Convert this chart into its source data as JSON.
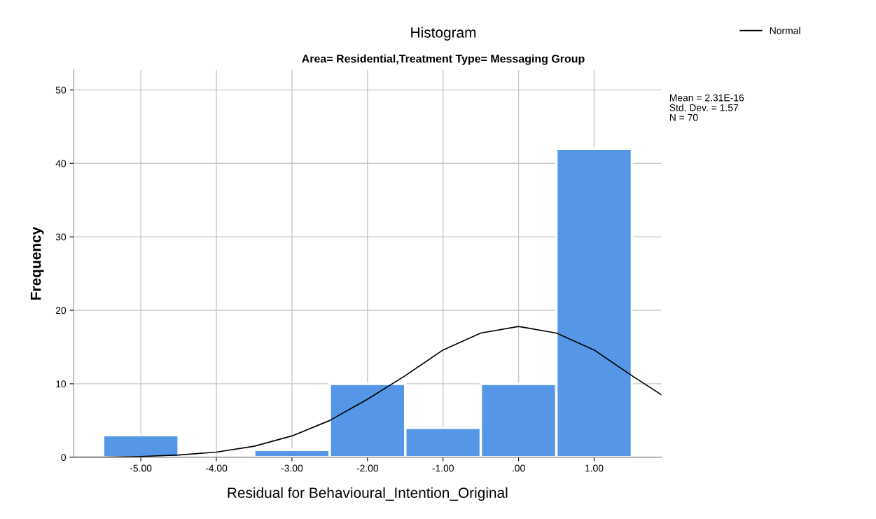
{
  "chart_data": {
    "type": "histogram",
    "title": "Histogram",
    "subtitle": "Area= Residential,Treatment Type= Messaging Group",
    "xlabel": "Residual for Behavioural_Intention_Original",
    "ylabel": "Frequency",
    "bins": [
      -5.5,
      -4.5,
      -3.5,
      -2.5,
      -1.5,
      -0.5,
      0.5,
      1.5
    ],
    "values": [
      3,
      0,
      1,
      10,
      4,
      10,
      42
    ],
    "color": "#5596e6",
    "series": [
      {
        "type": "line",
        "name": "Normal",
        "color": "#000000",
        "x": [
          -5.89,
          -5.5,
          -5.0,
          -4.5,
          -4.0,
          -3.5,
          -3.0,
          -2.5,
          -2.0,
          -1.5,
          -1.0,
          -0.5,
          0.0,
          0.5,
          1.0,
          1.5,
          1.89
        ],
        "values": [
          0,
          0,
          0.1,
          0.3,
          0.7,
          1.5,
          2.9,
          5.0,
          7.9,
          11.1,
          14.6,
          16.9,
          17.8,
          16.9,
          14.6,
          11.1,
          8.5
        ]
      }
    ],
    "xlim": [
      -5.89,
      1.89
    ],
    "ylim": [
      0,
      52.7
    ],
    "xticks": [
      {
        "value": -5,
        "label": "-5.00"
      },
      {
        "value": -4,
        "label": "-4.00"
      },
      {
        "value": -3,
        "label": "-3.00"
      },
      {
        "value": -2,
        "label": "-2.00"
      },
      {
        "value": -1,
        "label": "-1.00"
      },
      {
        "value": 0,
        "label": ".00"
      },
      {
        "value": 1,
        "label": "1.00"
      }
    ],
    "yticks": [
      0,
      10,
      20,
      30,
      40,
      50
    ],
    "grid": true,
    "legend": "top right",
    "marker": "none",
    "line_style": "solid",
    "annotations": [
      "Mean = 2.31E-16",
      "Std. Dev. = 1.57",
      "N = 70"
    ]
  }
}
